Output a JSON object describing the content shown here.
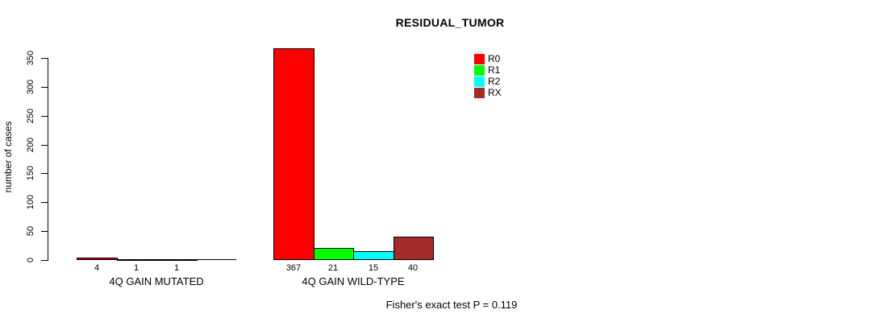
{
  "page": {
    "background": "#ffffff"
  },
  "chart_data": {
    "type": "bar",
    "title": "RESIDUAL_TUMOR",
    "ylabel": "number of cases",
    "xlabel": "",
    "ylim": [
      0,
      350
    ],
    "yticks": [
      0,
      50,
      100,
      150,
      200,
      250,
      300,
      350
    ],
    "grid": false,
    "legend_position": "top-right",
    "legend": [
      {
        "name": "R0",
        "color": "#ff0000"
      },
      {
        "name": "R1",
        "color": "#00ff00"
      },
      {
        "name": "R2",
        "color": "#00ffff"
      },
      {
        "name": "RX",
        "color": "#a52a2a"
      }
    ],
    "series_names": [
      "R0",
      "R1",
      "R2",
      "RX"
    ],
    "groups": [
      {
        "label": "4Q GAIN MUTATED",
        "values": [
          4,
          1,
          1,
          0
        ],
        "value_labels": [
          "4",
          "1",
          "1",
          ""
        ]
      },
      {
        "label": "4Q GAIN WILD-TYPE",
        "values": [
          367,
          21,
          15,
          40
        ],
        "value_labels": [
          "367",
          "21",
          "15",
          "40"
        ]
      }
    ],
    "annotation": "Fisher's exact test P = 0.119"
  }
}
